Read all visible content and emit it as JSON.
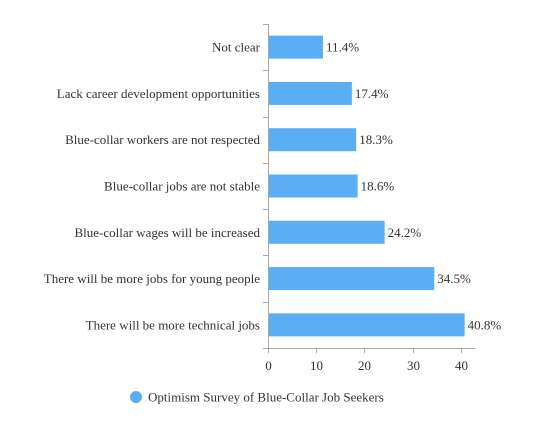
{
  "chart_data": {
    "type": "bar",
    "orientation": "horizontal",
    "categories": [
      "Not clear",
      "Lack career development opportunities",
      "Blue-collar workers are not respected",
      "Blue-collar jobs are not stable",
      "Blue-collar wages will be increased",
      "There will be more jobs for young people",
      "There will be more technical jobs"
    ],
    "series": [
      {
        "name": "Optimism Survey of Blue-Collar Job Seekers",
        "values": [
          11.4,
          17.4,
          18.3,
          18.6,
          24.2,
          34.5,
          40.8
        ],
        "labels": [
          "11.4%",
          "17.4%",
          "18.3%",
          "18.6%",
          "24.2%",
          "34.5%",
          "40.8%"
        ],
        "color": "#5aaef4"
      }
    ],
    "x_ticks": [
      "0",
      "10",
      "20",
      "30",
      "40"
    ],
    "xlim": [
      0,
      43
    ],
    "grid": false,
    "legend_position": "bottom"
  }
}
